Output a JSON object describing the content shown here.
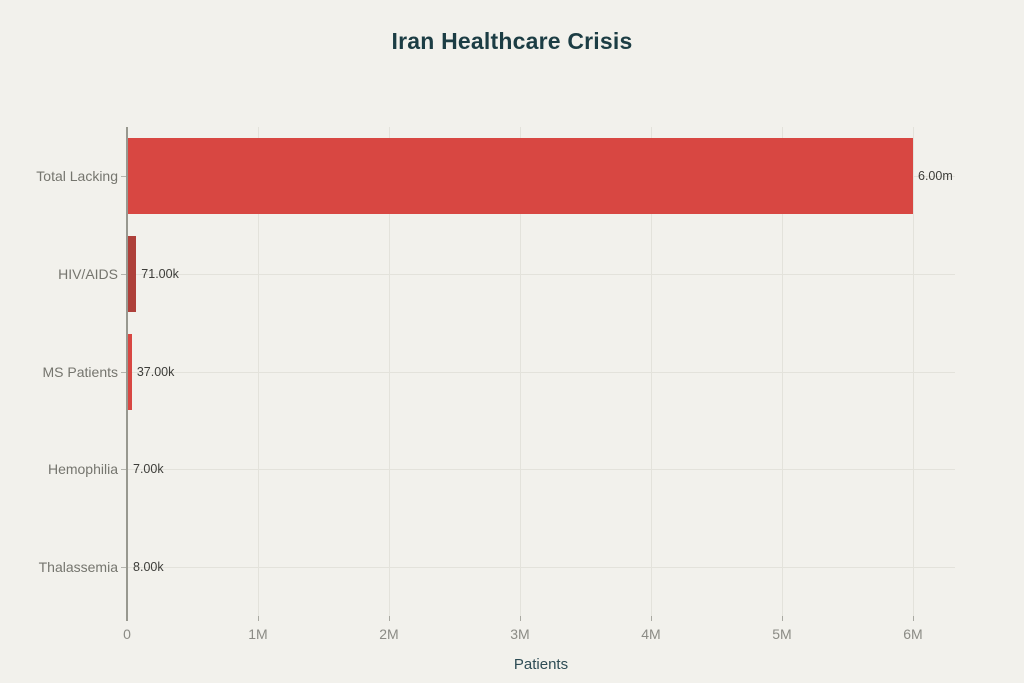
{
  "title": "Iran Healthcare Crisis",
  "chart_data": {
    "type": "bar",
    "orientation": "horizontal",
    "title": "Iran Healthcare Crisis",
    "categories": [
      "Total Lacking",
      "HIV/AIDS",
      "MS Patients",
      "Hemophilia",
      "Thalassemia"
    ],
    "values": [
      6000000,
      71000,
      37000,
      7000,
      8000
    ],
    "value_labels": [
      "6.00m",
      "71.00k",
      "37.00k",
      "7.00k",
      "8.00k"
    ],
    "xlabel": "Patients",
    "ylabel": "",
    "xlim": [
      0,
      6000000
    ],
    "x_tick_labels": [
      "0",
      "1M",
      "2M",
      "3M",
      "4M",
      "5M",
      "6M"
    ],
    "x_tick_values": [
      0,
      1000000,
      2000000,
      3000000,
      4000000,
      5000000,
      6000000
    ],
    "grid": true,
    "legend": false,
    "colors": {
      "background": "#f2f1ec",
      "bar_bright_red": "#d84742",
      "bar_dark_red": "#ae403a",
      "bar_palette": [
        "#d84742",
        "#ae403a",
        "#d84742",
        "#ae403a",
        "#d84742"
      ],
      "title_text": "#1c3d44",
      "axis_title_text": "#2e4c55",
      "category_text": "#75756e",
      "value_text": "#3d3d39",
      "tick_text": "#8b8b85",
      "gridline": "#e3e2db",
      "axis_line": "#98988f"
    }
  }
}
